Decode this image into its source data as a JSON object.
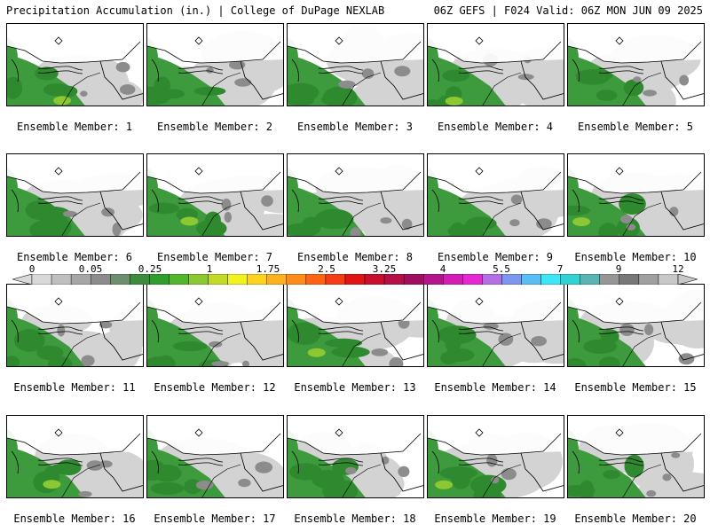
{
  "header": {
    "left": "Precipitation Accumulation (in.) | College of DuPage NEXLAB",
    "right": "06Z GEFS | F024 Valid: 06Z MON JUN 09 2025"
  },
  "members": [
    {
      "label": "Ensemble Member: 1"
    },
    {
      "label": "Ensemble Member: 2"
    },
    {
      "label": "Ensemble Member: 3"
    },
    {
      "label": "Ensemble Member: 4"
    },
    {
      "label": "Ensemble Member: 5"
    },
    {
      "label": "Ensemble Member: 6"
    },
    {
      "label": "Ensemble Member: 7"
    },
    {
      "label": "Ensemble Member: 8"
    },
    {
      "label": "Ensemble Member: 9"
    },
    {
      "label": "Ensemble Member: 10"
    },
    {
      "label": "Ensemble Member: 11"
    },
    {
      "label": "Ensemble Member: 12"
    },
    {
      "label": "Ensemble Member: 13"
    },
    {
      "label": "Ensemble Member: 14"
    },
    {
      "label": "Ensemble Member: 15"
    },
    {
      "label": "Ensemble Member: 16"
    },
    {
      "label": "Ensemble Member: 17"
    },
    {
      "label": "Ensemble Member: 18"
    },
    {
      "label": "Ensemble Member: 19"
    },
    {
      "label": "Ensemble Member: 20"
    }
  ],
  "colorbar": {
    "ticks": [
      "0",
      "0.05",
      "0.25",
      "1",
      "1.75",
      "2.5",
      "3.25",
      "4",
      "5.5",
      "7",
      "9",
      "12"
    ],
    "colors": [
      "#d9d9d9",
      "#bfbfbf",
      "#a6a6a6",
      "#8c8c8c",
      "#6e8f6e",
      "#3d8c3d",
      "#2f9e2f",
      "#52b52b",
      "#8bc832",
      "#c3da28",
      "#f2f21f",
      "#ffd21f",
      "#ffb01f",
      "#ff8c1a",
      "#ff6414",
      "#f53c14",
      "#e01414",
      "#c80f2d",
      "#b40f46",
      "#a00f5f",
      "#b4148c",
      "#d21eb4",
      "#e628d2",
      "#b46ee6",
      "#7d96f0",
      "#5abef5",
      "#3ce6f5",
      "#32d2d2",
      "#5ab4b4",
      "#969696",
      "#787878",
      "#a0a0a0",
      "#c8c8c8"
    ]
  }
}
